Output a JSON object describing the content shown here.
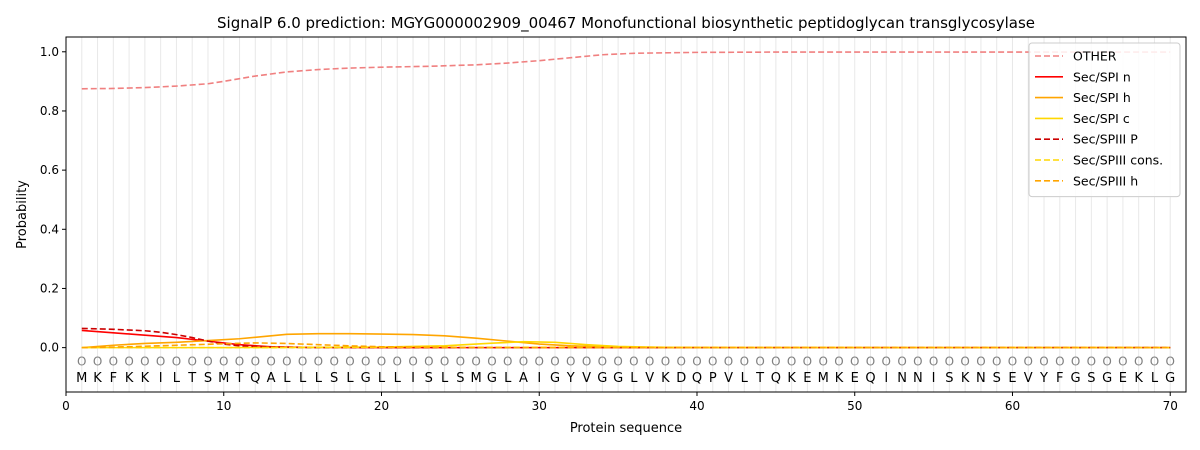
{
  "chart_data": {
    "type": "line",
    "title": "SignalP 6.0 prediction: MGYG000002909_00467 Monofunctional biosynthetic peptidoglycan transglycosylase",
    "xlabel": "Protein sequence",
    "ylabel": "Probability",
    "xlim": [
      0,
      71
    ],
    "ylim": [
      -0.15,
      1.05
    ],
    "xticks": [
      0,
      10,
      20,
      30,
      40,
      50,
      60,
      70
    ],
    "yticks": [
      0.0,
      0.2,
      0.4,
      0.6,
      0.8,
      1.0
    ],
    "ytick_labels": [
      "0.0",
      "0.2",
      "0.4",
      "0.6",
      "0.8",
      "1.0"
    ],
    "grid": "vertical lines at each residue position",
    "legend_position": "top-right",
    "sequence": [
      "M",
      "K",
      "F",
      "K",
      "K",
      "I",
      "L",
      "T",
      "S",
      "M",
      "T",
      "Q",
      "A",
      "L",
      "L",
      "L",
      "S",
      "L",
      "G",
      "L",
      "L",
      "I",
      "S",
      "L",
      "S",
      "M",
      "G",
      "L",
      "A",
      "I",
      "G",
      "Y",
      "V",
      "G",
      "G",
      "L",
      "V",
      "K",
      "D",
      "Q",
      "P",
      "V",
      "L",
      "T",
      "Q",
      "K",
      "E",
      "M",
      "K",
      "E",
      "Q",
      "I",
      "N",
      "N",
      "I",
      "S",
      "K",
      "N",
      "S",
      "E",
      "V",
      "Y",
      "F",
      "G",
      "S",
      "G",
      "E",
      "K",
      "L",
      "G"
    ],
    "region_labels": [
      "O",
      "O",
      "O",
      "O",
      "O",
      "O",
      "O",
      "O",
      "O",
      "O",
      "O",
      "O",
      "O",
      "O",
      "O",
      "O",
      "O",
      "O",
      "O",
      "O",
      "O",
      "O",
      "O",
      "O",
      "O",
      "O",
      "O",
      "O",
      "O",
      "O",
      "O",
      "O",
      "O",
      "O",
      "O",
      "O",
      "O",
      "O",
      "O",
      "O",
      "O",
      "O",
      "O",
      "O",
      "O",
      "O",
      "O",
      "O",
      "O",
      "O",
      "O",
      "O",
      "O",
      "O",
      "O",
      "O",
      "O",
      "O",
      "O",
      "O",
      "O",
      "O",
      "O",
      "O",
      "O",
      "O",
      "O",
      "O",
      "O",
      "O"
    ],
    "series": [
      {
        "name": "OTHER",
        "color": "#f08080",
        "dash": "dashed",
        "points": [
          [
            1,
            0.875
          ],
          [
            3,
            0.876
          ],
          [
            5,
            0.879
          ],
          [
            7,
            0.884
          ],
          [
            9,
            0.892
          ],
          [
            10,
            0.9
          ],
          [
            12,
            0.918
          ],
          [
            14,
            0.932
          ],
          [
            16,
            0.94
          ],
          [
            18,
            0.945
          ],
          [
            20,
            0.948
          ],
          [
            23,
            0.951
          ],
          [
            26,
            0.956
          ],
          [
            28,
            0.962
          ],
          [
            30,
            0.97
          ],
          [
            32,
            0.98
          ],
          [
            34,
            0.99
          ],
          [
            36,
            0.995
          ],
          [
            40,
            0.998
          ],
          [
            45,
            0.999
          ],
          [
            70,
            0.999
          ]
        ]
      },
      {
        "name": "Sec/SPI n",
        "color": "#ff0000",
        "dash": "solid",
        "points": [
          [
            1,
            0.058
          ],
          [
            3,
            0.05
          ],
          [
            5,
            0.042
          ],
          [
            7,
            0.034
          ],
          [
            9,
            0.022
          ],
          [
            11,
            0.01
          ],
          [
            13,
            0.003
          ],
          [
            15,
            0.001
          ],
          [
            20,
            0.0
          ],
          [
            70,
            0.0
          ]
        ]
      },
      {
        "name": "Sec/SPI h",
        "color": "#ffa500",
        "dash": "solid",
        "points": [
          [
            1,
            0.0
          ],
          [
            3,
            0.008
          ],
          [
            5,
            0.014
          ],
          [
            7,
            0.018
          ],
          [
            9,
            0.024
          ],
          [
            11,
            0.03
          ],
          [
            13,
            0.04
          ],
          [
            14,
            0.045
          ],
          [
            16,
            0.047
          ],
          [
            18,
            0.047
          ],
          [
            20,
            0.046
          ],
          [
            22,
            0.044
          ],
          [
            24,
            0.04
          ],
          [
            26,
            0.032
          ],
          [
            28,
            0.022
          ],
          [
            30,
            0.012
          ],
          [
            32,
            0.006
          ],
          [
            34,
            0.003
          ],
          [
            36,
            0.001
          ],
          [
            40,
            0.0
          ],
          [
            70,
            0.0
          ]
        ]
      },
      {
        "name": "Sec/SPI c",
        "color": "#ffd700",
        "dash": "solid",
        "points": [
          [
            1,
            0.0
          ],
          [
            10,
            0.0
          ],
          [
            20,
            0.002
          ],
          [
            24,
            0.006
          ],
          [
            27,
            0.015
          ],
          [
            29,
            0.02
          ],
          [
            31,
            0.018
          ],
          [
            33,
            0.01
          ],
          [
            35,
            0.004
          ],
          [
            38,
            0.001
          ],
          [
            42,
            0.0
          ],
          [
            70,
            0.0
          ]
        ]
      },
      {
        "name": "Sec/SPIII P",
        "color": "#cc0000",
        "dash": "dashed",
        "points": [
          [
            1,
            0.065
          ],
          [
            3,
            0.062
          ],
          [
            5,
            0.057
          ],
          [
            6,
            0.052
          ],
          [
            7,
            0.044
          ],
          [
            8,
            0.034
          ],
          [
            9,
            0.022
          ],
          [
            10,
            0.012
          ],
          [
            11,
            0.006
          ],
          [
            13,
            0.002
          ],
          [
            16,
            0.0
          ],
          [
            70,
            0.0
          ]
        ]
      },
      {
        "name": "Sec/SPIII cons.",
        "color": "#ffd700",
        "dash": "dashed",
        "points": [
          [
            1,
            0.0
          ],
          [
            10,
            0.0
          ],
          [
            20,
            0.001
          ],
          [
            30,
            0.001
          ],
          [
            70,
            0.0
          ]
        ]
      },
      {
        "name": "Sec/SPIII h",
        "color": "#ffa500",
        "dash": "dashed",
        "points": [
          [
            1,
            0.0
          ],
          [
            4,
            0.003
          ],
          [
            7,
            0.008
          ],
          [
            10,
            0.013
          ],
          [
            12,
            0.016
          ],
          [
            14,
            0.014
          ],
          [
            16,
            0.01
          ],
          [
            18,
            0.006
          ],
          [
            20,
            0.003
          ],
          [
            24,
            0.001
          ],
          [
            28,
            0.0
          ],
          [
            70,
            0.0
          ]
        ]
      }
    ]
  }
}
